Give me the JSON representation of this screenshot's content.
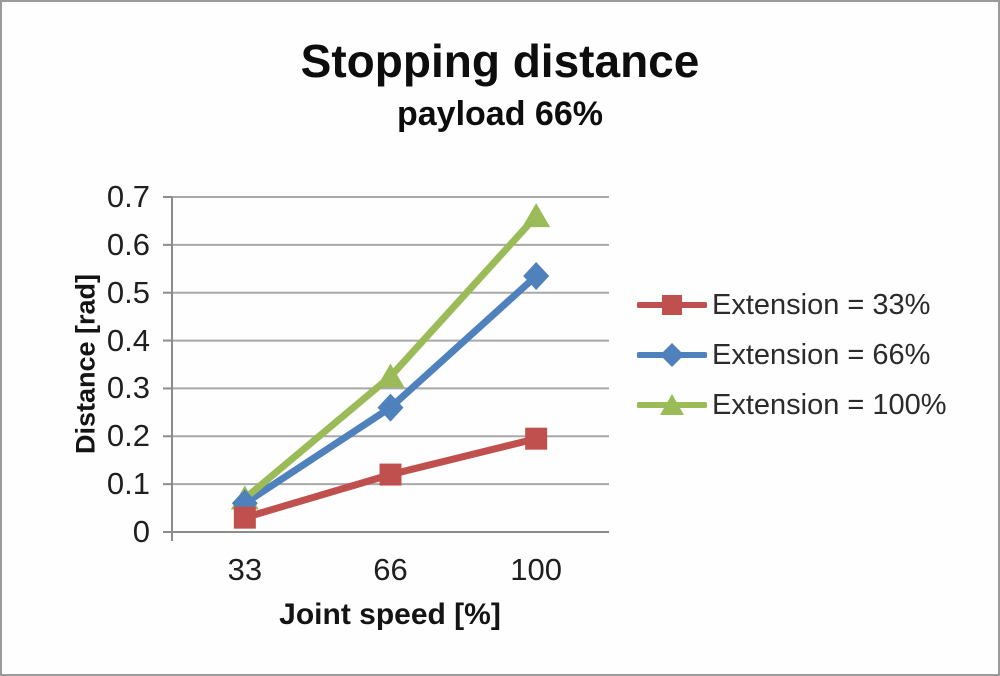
{
  "chart_data": {
    "type": "line",
    "title": "Stopping distance",
    "subtitle": "payload 66%",
    "xlabel": "Joint speed [%]",
    "ylabel": "Distance [rad]",
    "categories": [
      "33",
      "66",
      "100"
    ],
    "series": [
      {
        "name": "Extension = 33%",
        "marker": "square",
        "color": "#c0504d",
        "values": [
          0.03,
          0.12,
          0.195
        ]
      },
      {
        "name": "Extension = 66%",
        "marker": "diamond",
        "color": "#4f81bd",
        "values": [
          0.06,
          0.26,
          0.535
        ]
      },
      {
        "name": "Extension = 100%",
        "marker": "triangle",
        "color": "#9bbb59",
        "values": [
          0.07,
          0.325,
          0.66
        ]
      }
    ],
    "ylim": [
      0,
      0.7
    ],
    "yticks": [
      "0",
      "0.1",
      "0.2",
      "0.3",
      "0.4",
      "0.5",
      "0.6",
      "0.7"
    ],
    "grid": "horizontal",
    "legend_position": "right",
    "axis_color": "#8c8c8c",
    "grid_color": "#a8a8a8",
    "frame_border_color": "#9b9b9b",
    "background_color": "#fefefe"
  }
}
